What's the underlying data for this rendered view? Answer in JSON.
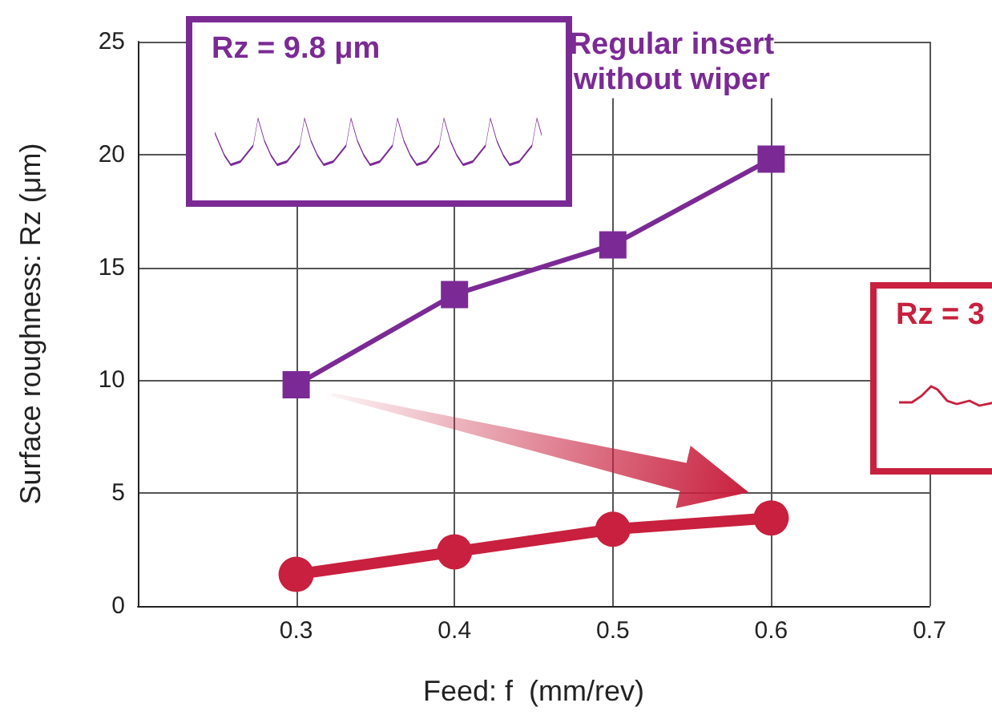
{
  "chart_data": {
    "type": "line",
    "xlabel": "Feed: f  (mm/rev)",
    "ylabel": "Surface roughness: Rz (μm)",
    "x": [
      0.3,
      0.4,
      0.5,
      0.6
    ],
    "series": [
      {
        "name": "Regular insert\nwithout wiper",
        "color": "#7b2a95",
        "values": [
          9.8,
          13.8,
          16.0,
          19.8
        ],
        "marker": "square"
      },
      {
        "color": "#c8203e",
        "values": [
          1.4,
          2.4,
          3.4,
          3.9
        ],
        "marker": "circle"
      }
    ],
    "annotations": [
      "Rz = 9.8 μm",
      "Rz = 3"
    ],
    "xlim": [
      0.2,
      0.7
    ],
    "xticks": [
      0.3,
      0.4,
      0.5,
      0.6,
      0.7
    ],
    "ylim": [
      0,
      25
    ],
    "yticks": [
      0,
      5,
      10,
      15,
      20,
      25
    ],
    "grid": true,
    "legend": false
  }
}
